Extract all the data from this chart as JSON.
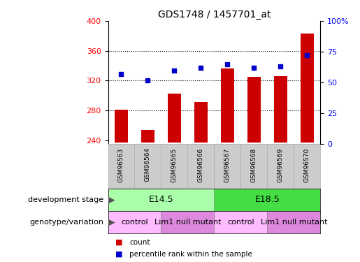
{
  "title": "GDS1748 / 1457701_at",
  "samples": [
    "GSM96563",
    "GSM96564",
    "GSM96565",
    "GSM96566",
    "GSM96567",
    "GSM96568",
    "GSM96569",
    "GSM96570"
  ],
  "bar_values": [
    281,
    254,
    303,
    291,
    336,
    325,
    326,
    383
  ],
  "dot_values": [
    57,
    52,
    60,
    62,
    65,
    62,
    63,
    72
  ],
  "ylim_left": [
    235,
    400
  ],
  "ylim_right": [
    0,
    100
  ],
  "yticks_left": [
    240,
    280,
    320,
    360,
    400
  ],
  "yticks_right": [
    0,
    25,
    50,
    75,
    100
  ],
  "bar_color": "#cc0000",
  "dot_color": "#0000cc",
  "bar_bottom": 237,
  "grid_lines": [
    280,
    320,
    360
  ],
  "dev_stage_labels": [
    "E14.5",
    "E18.5"
  ],
  "dev_stage_ranges": [
    [
      0,
      3
    ],
    [
      4,
      7
    ]
  ],
  "dev_stage_colors": [
    "#aaffaa",
    "#44dd44"
  ],
  "genotype_labels": [
    "control",
    "Lim1 null mutant",
    "control",
    "Lim1 null mutant"
  ],
  "genotype_ranges": [
    [
      0,
      1
    ],
    [
      2,
      3
    ],
    [
      4,
      5
    ],
    [
      6,
      7
    ]
  ],
  "genotype_colors": [
    "#ffbbff",
    "#dd88dd",
    "#ffbbff",
    "#dd88dd"
  ],
  "annot_dev": "development stage",
  "annot_gen": "genotype/variation",
  "legend_count": "count",
  "legend_pct": "percentile rank within the sample"
}
